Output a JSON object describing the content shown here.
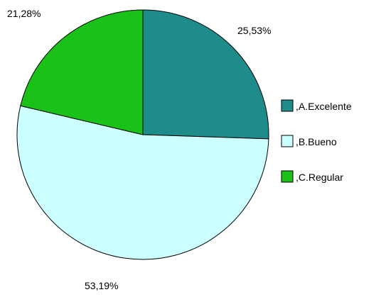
{
  "chart_data": {
    "type": "pie",
    "categories": [
      ",A.Excelente",
      ",B.Bueno",
      ",C.Regular"
    ],
    "values": [
      25.53,
      53.19,
      21.28
    ],
    "value_labels": [
      "25,53%",
      "53,19%",
      "21,28%"
    ],
    "colors": [
      "#1f8c8c",
      "#ccffff",
      "#19c119"
    ],
    "legend_position": "right",
    "start_angle": "12 o'clock",
    "direction": "clockwise"
  }
}
